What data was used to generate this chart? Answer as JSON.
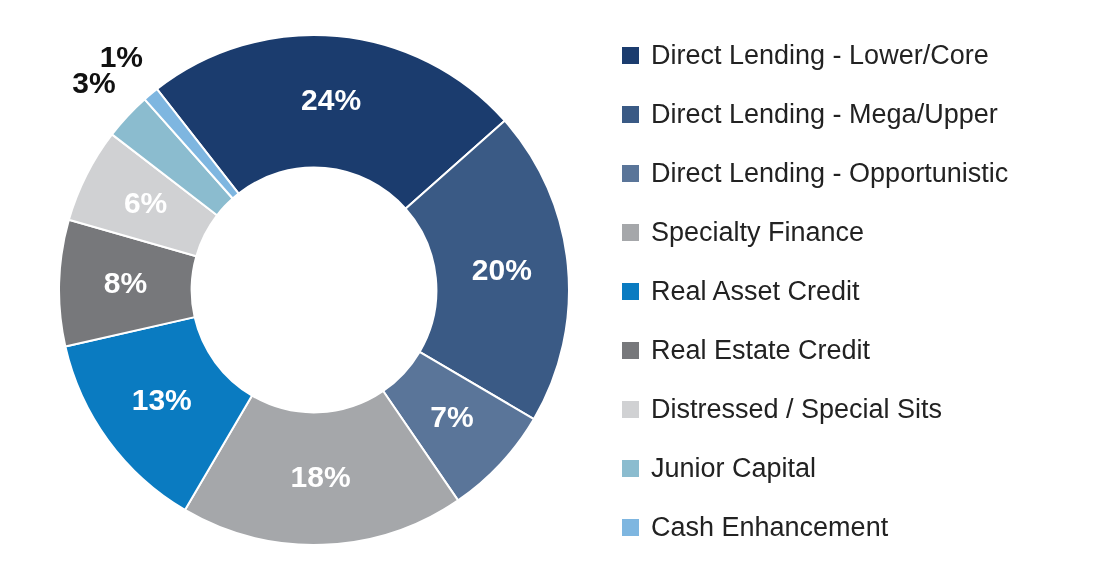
{
  "chart_data": {
    "type": "donut",
    "categories": [
      "Direct Lending - Lower/Core",
      "Direct Lending - Mega/Upper",
      "Direct Lending - Opportunistic",
      "Specialty Finance",
      "Real Asset Credit",
      "Real Estate Credit",
      "Distressed / Special Sits",
      "Junior Capital",
      "Cash Enhancement"
    ],
    "values": [
      24,
      20,
      7,
      18,
      13,
      8,
      6,
      3,
      1
    ],
    "value_labels": [
      "24%",
      "20%",
      "7%",
      "18%",
      "13%",
      "8%",
      "6%",
      "3%",
      "1%"
    ],
    "colors": [
      "#1b3c6e",
      "#3a5a85",
      "#5a7599",
      "#a5a7aa",
      "#0a7bc1",
      "#77787b",
      "#d0d1d3",
      "#8bbccf",
      "#7eb6e0"
    ],
    "legend": "right"
  }
}
